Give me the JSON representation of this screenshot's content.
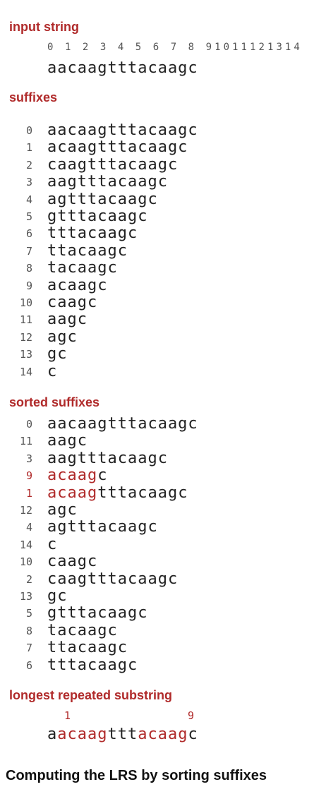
{
  "input": {
    "heading": "input string",
    "index_row": "0 1 2 3 4 5 6 7 8 91011121314",
    "string": "aacaagtttacaagc"
  },
  "suffixes": {
    "heading": "suffixes",
    "rows": [
      {
        "i": "0",
        "s": "aacaagtttacaagc"
      },
      {
        "i": "1",
        "s": "acaagtttacaagc"
      },
      {
        "i": "2",
        "s": "caagtttacaagc"
      },
      {
        "i": "3",
        "s": "aagtttacaagc"
      },
      {
        "i": "4",
        "s": "agtttacaagc"
      },
      {
        "i": "5",
        "s": "gtttacaagc"
      },
      {
        "i": "6",
        "s": "tttacaagc"
      },
      {
        "i": "7",
        "s": "ttacaagc"
      },
      {
        "i": "8",
        "s": "tacaagc"
      },
      {
        "i": "9",
        "s": "acaagc"
      },
      {
        "i": "10",
        "s": "caagc"
      },
      {
        "i": "11",
        "s": "aagc"
      },
      {
        "i": "12",
        "s": "agc"
      },
      {
        "i": "13",
        "s": "gc"
      },
      {
        "i": "14",
        "s": "c"
      }
    ]
  },
  "sorted": {
    "heading": "sorted suffixes",
    "rows": [
      {
        "i": "0",
        "pre": "",
        "s": "aacaagtttacaagc",
        "hl": false
      },
      {
        "i": "11",
        "pre": "",
        "s": "aagc",
        "hl": false
      },
      {
        "i": "3",
        "pre": "",
        "s": "aagtttacaagc",
        "hl": false
      },
      {
        "i": "9",
        "pre": "acaag",
        "s": "c",
        "hl": true
      },
      {
        "i": "1",
        "pre": "acaag",
        "s": "tttacaagc",
        "hl": true
      },
      {
        "i": "12",
        "pre": "",
        "s": "agc",
        "hl": false
      },
      {
        "i": "4",
        "pre": "",
        "s": "agtttacaagc",
        "hl": false
      },
      {
        "i": "14",
        "pre": "",
        "s": "c",
        "hl": false
      },
      {
        "i": "10",
        "pre": "",
        "s": "caagc",
        "hl": false
      },
      {
        "i": "2",
        "pre": "",
        "s": "caagtttacaagc",
        "hl": false
      },
      {
        "i": "13",
        "pre": "",
        "s": "gc",
        "hl": false
      },
      {
        "i": "5",
        "pre": "",
        "s": "gtttacaagc",
        "hl": false
      },
      {
        "i": "8",
        "pre": "",
        "s": "tacaagc",
        "hl": false
      },
      {
        "i": "7",
        "pre": "",
        "s": "ttacaagc",
        "hl": false
      },
      {
        "i": "6",
        "pre": "",
        "s": "tttacaagc",
        "hl": false
      }
    ]
  },
  "lrs": {
    "heading": "longest repeated substring",
    "mark1": "1",
    "mark2": "9",
    "parts": [
      "a",
      "acaag",
      "ttt",
      "acaag",
      "c"
    ]
  },
  "caption": "Computing the LRS by sorting suffixes",
  "colors": {
    "highlight": "#b02a2a",
    "text": "#222222",
    "index": "#555555"
  }
}
